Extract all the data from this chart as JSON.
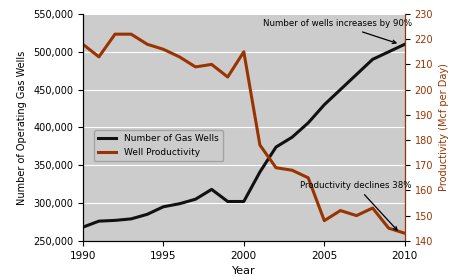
{
  "years_wells": [
    1990,
    1991,
    1992,
    1993,
    1994,
    1995,
    1996,
    1997,
    1998,
    1999,
    2000,
    2001,
    2002,
    2003,
    2004,
    2005,
    2006,
    2007,
    2008,
    2009,
    2010
  ],
  "values_wells": [
    268000,
    276000,
    277000,
    279000,
    285000,
    295000,
    299000,
    305000,
    318000,
    302000,
    302000,
    341000,
    374000,
    387000,
    406000,
    430000,
    450000,
    470000,
    490000,
    500000,
    510000
  ],
  "years_prod": [
    1990,
    1991,
    1992,
    1993,
    1994,
    1995,
    1996,
    1997,
    1998,
    1999,
    2000,
    2001,
    2002,
    2003,
    2004,
    2005,
    2006,
    2007,
    2008,
    2009,
    2010
  ],
  "values_prod": [
    218,
    213,
    222,
    222,
    218,
    216,
    213,
    209,
    210,
    205,
    215,
    178,
    169,
    168,
    165,
    148,
    152,
    150,
    153,
    145,
    143
  ],
  "ylim_left": [
    250000,
    550000
  ],
  "ylim_right": [
    140,
    230
  ],
  "yticks_left": [
    250000,
    300000,
    350000,
    400000,
    450000,
    500000,
    550000
  ],
  "yticks_right": [
    140,
    150,
    160,
    170,
    180,
    190,
    200,
    210,
    220,
    230
  ],
  "xlabel": "Year",
  "ylabel_left": "Number of Operating Gas Wells",
  "ylabel_right": "Productivity (Mcf per Day)",
  "legend_wells": "Number of Gas Wells",
  "legend_prod": "Well Productivity",
  "color_wells": "#111111",
  "color_prod": "#993300",
  "bg_color": "#CCCCCC",
  "xticks": [
    1990,
    1995,
    2000,
    2005,
    2010
  ]
}
